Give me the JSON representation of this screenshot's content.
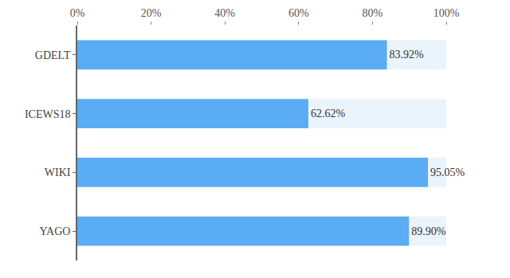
{
  "chart_data": {
    "type": "bar",
    "orientation": "horizontal",
    "categories": [
      "GDELT",
      "ICEWS18",
      "WIKI",
      "YAGO"
    ],
    "values": [
      83.92,
      62.62,
      95.05,
      89.9
    ],
    "value_labels": [
      "83.92%",
      "62.62%",
      "95.05%",
      "89.90%"
    ],
    "data_labels": true,
    "color": "#5aacf5",
    "xlim": [
      0,
      100
    ],
    "xticks": [
      {
        "value": 0,
        "label": "0%"
      },
      {
        "value": 20,
        "label": "20%"
      },
      {
        "value": 40,
        "label": "40%"
      },
      {
        "value": 60,
        "label": "60%"
      },
      {
        "value": 80,
        "label": "80%"
      },
      {
        "value": 100,
        "label": "100%"
      }
    ],
    "grid": false
  }
}
